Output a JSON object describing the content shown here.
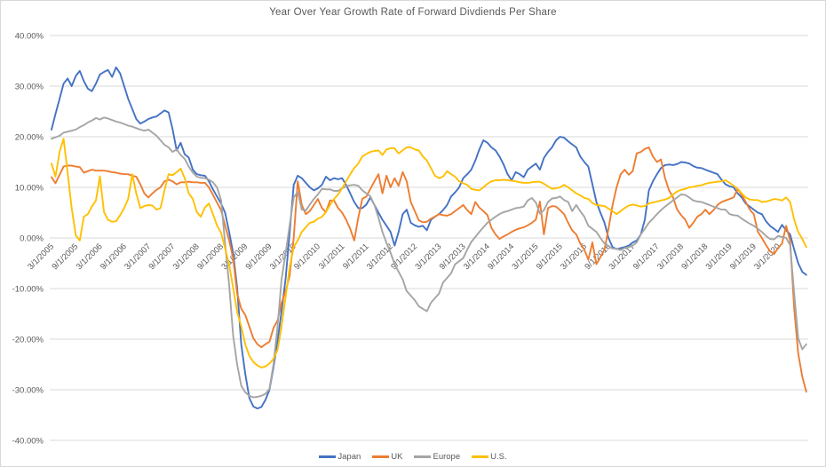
{
  "chart_data": {
    "type": "line",
    "title": "Year Over Year Growth Rate of Forward Divdiends Per Share",
    "grid": true,
    "legend_position": "bottom",
    "ylim": [
      -40,
      40
    ],
    "y_tick_step": 10,
    "y_tick_labels": [
      "40.00%",
      "30.00%",
      "20.00%",
      "10.00%",
      "0.00%",
      "-10.00%",
      "-20.00%",
      "-30.00%",
      "-40.00%"
    ],
    "x_tick_labels": [
      "3/1/2005",
      "9/1/2005",
      "3/1/2006",
      "9/1/2006",
      "3/1/2007",
      "9/1/2007",
      "3/1/2008",
      "9/1/2008",
      "3/1/2009",
      "9/1/2009",
      "3/1/2010",
      "9/1/2010",
      "3/1/2011",
      "9/1/2011",
      "3/1/2012",
      "9/1/2012",
      "3/1/2013",
      "9/1/2013",
      "3/1/2014",
      "9/1/2014",
      "3/1/2015",
      "9/1/2015",
      "3/1/2016",
      "9/1/2016",
      "3/1/2017",
      "9/1/2017",
      "3/1/2018",
      "9/1/2018",
      "3/1/2019",
      "9/1/2019",
      "3/1/2020"
    ],
    "x_label_every_n_months": 6,
    "x_start_month": "2005-03",
    "x_end_month": "2020-10",
    "series": [
      {
        "name": "Japan",
        "color": "#4472C4",
        "values": [
          21.4,
          24.5,
          27.5,
          30.5,
          31.5,
          30.0,
          32.0,
          33.0,
          31.0,
          29.5,
          29.0,
          30.5,
          32.3,
          32.8,
          33.2,
          31.8,
          33.7,
          32.5,
          30.0,
          27.5,
          25.5,
          23.5,
          22.6,
          23.0,
          23.5,
          23.8,
          24.0,
          24.6,
          25.2,
          24.8,
          21.5,
          17.3,
          18.8,
          16.5,
          15.9,
          13.5,
          12.6,
          12.4,
          12.3,
          11.2,
          9.6,
          8.2,
          6.8,
          5.0,
          1.2,
          -3.0,
          -9.8,
          -21.0,
          -26.8,
          -31.6,
          -33.3,
          -33.7,
          -33.4,
          -32.0,
          -30.0,
          -25.6,
          -20.4,
          -14.5,
          -8.0,
          1.0,
          10.5,
          12.3,
          11.8,
          10.9,
          10.0,
          9.4,
          9.8,
          10.5,
          12.1,
          11.4,
          11.8,
          11.6,
          11.8,
          10.5,
          8.8,
          7.1,
          5.9,
          5.9,
          6.6,
          8.0,
          6.5,
          5.0,
          3.6,
          2.4,
          1.2,
          -1.5,
          1.2,
          4.7,
          5.6,
          3.0,
          2.5,
          2.2,
          2.4,
          1.5,
          3.6,
          4.2,
          4.7,
          5.5,
          6.5,
          8.2,
          9.0,
          10.0,
          11.8,
          12.6,
          13.5,
          15.3,
          17.5,
          19.3,
          18.8,
          17.9,
          17.3,
          16.1,
          14.5,
          12.6,
          11.4,
          13.0,
          12.6,
          12.0,
          13.5,
          14.1,
          14.7,
          13.5,
          15.8,
          17.0,
          17.9,
          19.3,
          20.0,
          19.8,
          19.1,
          18.5,
          17.9,
          16.1,
          15.0,
          14.1,
          10.6,
          7.1,
          5.0,
          3.0,
          0.0,
          -1.8,
          -2.2,
          -2.0,
          -1.8,
          -1.5,
          -0.9,
          -0.5,
          0.7,
          3.6,
          9.4,
          11.2,
          12.6,
          13.8,
          14.4,
          14.5,
          14.4,
          14.6,
          15.0,
          14.9,
          14.7,
          14.2,
          13.9,
          13.8,
          13.5,
          13.2,
          12.9,
          12.6,
          11.5,
          10.6,
          10.2,
          10.0,
          8.8,
          8.0,
          6.8,
          6.2,
          5.6,
          5.0,
          4.7,
          3.3,
          2.4,
          1.8,
          1.2,
          2.6,
          1.5,
          0.7,
          -2.3,
          -5.0,
          -6.7,
          -7.3
        ]
      },
      {
        "name": "UK",
        "color": "#ED7D31",
        "values": [
          12.0,
          10.8,
          12.5,
          14.1,
          14.3,
          14.3,
          14.1,
          14.0,
          12.9,
          13.2,
          13.5,
          13.3,
          13.3,
          13.3,
          13.2,
          13.0,
          12.9,
          12.7,
          12.6,
          12.6,
          12.3,
          12.1,
          10.6,
          8.8,
          8.0,
          8.8,
          9.5,
          10.0,
          11.2,
          11.5,
          11.2,
          10.6,
          11.0,
          11.0,
          11.1,
          11.0,
          11.0,
          10.9,
          10.9,
          10.0,
          8.5,
          7.0,
          5.5,
          2.5,
          -0.5,
          -4.0,
          -11.0,
          -14.0,
          -15.2,
          -17.5,
          -19.8,
          -21.0,
          -21.6,
          -21.0,
          -20.5,
          -17.8,
          -16.3,
          -12.8,
          -10.5,
          -7.5,
          0.0,
          11.2,
          6.5,
          4.7,
          5.3,
          6.5,
          7.7,
          5.9,
          5.1,
          7.4,
          7.4,
          5.9,
          5.0,
          3.6,
          1.8,
          -0.5,
          4.0,
          7.7,
          8.2,
          9.7,
          11.2,
          12.6,
          8.8,
          12.3,
          10.0,
          11.8,
          10.3,
          13.0,
          11.2,
          7.1,
          5.3,
          3.5,
          3.1,
          3.2,
          3.8,
          4.2,
          4.7,
          4.5,
          4.4,
          4.7,
          5.3,
          5.9,
          6.5,
          5.5,
          4.7,
          7.1,
          6.0,
          5.3,
          4.5,
          2.0,
          0.7,
          -0.2,
          0.3,
          0.7,
          1.2,
          1.6,
          1.9,
          2.1,
          2.5,
          3.0,
          3.6,
          7.2,
          0.7,
          5.9,
          6.3,
          6.2,
          5.5,
          4.7,
          3.0,
          1.5,
          0.7,
          -1.1,
          -2.3,
          -4.3,
          -0.9,
          -5.2,
          -3.8,
          -2.3,
          1.8,
          6.5,
          10.0,
          12.6,
          13.5,
          12.5,
          13.2,
          16.7,
          17.0,
          17.6,
          17.9,
          16.1,
          15.0,
          15.5,
          11.8,
          9.4,
          8.0,
          5.6,
          4.5,
          3.6,
          2.0,
          3.0,
          4.2,
          4.7,
          5.6,
          4.7,
          5.5,
          6.5,
          7.1,
          7.4,
          7.7,
          8.0,
          9.7,
          8.5,
          7.1,
          5.6,
          4.7,
          1.2,
          0.0,
          -1.4,
          -2.6,
          -3.2,
          -2.0,
          -1.1,
          2.4,
          -0.5,
          -14.0,
          -22.8,
          -27.4,
          -30.4
        ]
      },
      {
        "name": "Europe",
        "color": "#A5A5A5",
        "values": [
          19.6,
          19.9,
          20.2,
          20.8,
          21.0,
          21.2,
          21.4,
          21.9,
          22.3,
          22.8,
          23.2,
          23.7,
          23.4,
          23.8,
          23.6,
          23.3,
          23.0,
          22.8,
          22.5,
          22.2,
          22.0,
          21.7,
          21.4,
          21.2,
          21.4,
          20.8,
          20.2,
          19.3,
          18.4,
          17.9,
          17.0,
          17.5,
          16.4,
          15.6,
          14.1,
          12.9,
          12.1,
          11.9,
          11.8,
          11.5,
          11.0,
          10.0,
          7.5,
          -1.0,
          -9.3,
          -19.3,
          -25.0,
          -29.2,
          -30.5,
          -31.2,
          -31.5,
          -31.4,
          -31.2,
          -30.8,
          -29.8,
          -25.0,
          -17.5,
          -8.2,
          -3.0,
          2.5,
          8.0,
          9.1,
          5.6,
          5.4,
          6.6,
          7.7,
          8.6,
          9.7,
          9.6,
          9.6,
          9.3,
          9.3,
          9.8,
          10.2,
          10.4,
          10.5,
          10.3,
          9.4,
          8.8,
          8.2,
          6.5,
          4.0,
          1.2,
          -1.0,
          -2.9,
          -5.2,
          -6.7,
          -8.2,
          -10.5,
          -11.4,
          -12.3,
          -13.5,
          -14.0,
          -14.5,
          -12.8,
          -11.9,
          -11.0,
          -8.8,
          -7.9,
          -7.0,
          -5.2,
          -4.6,
          -4.0,
          -2.3,
          -0.8,
          0.2,
          1.2,
          2.1,
          3.0,
          3.6,
          4.2,
          4.7,
          5.1,
          5.3,
          5.6,
          5.9,
          6.0,
          6.2,
          7.4,
          7.9,
          7.0,
          4.8,
          5.5,
          7.1,
          7.8,
          7.9,
          8.2,
          7.5,
          7.1,
          5.3,
          6.5,
          5.3,
          4.2,
          2.4,
          1.8,
          1.2,
          0.0,
          -1.1,
          -1.6,
          -2.1,
          -2.1,
          -2.4,
          -2.0,
          -1.8,
          -1.5,
          -0.9,
          0.7,
          1.8,
          3.0,
          3.8,
          4.7,
          5.5,
          6.2,
          6.8,
          7.4,
          8.0,
          8.6,
          8.5,
          8.0,
          7.4,
          7.2,
          7.1,
          6.8,
          6.5,
          6.2,
          5.9,
          5.6,
          5.6,
          4.7,
          4.5,
          4.4,
          3.8,
          3.3,
          2.8,
          2.4,
          1.8,
          1.2,
          0.4,
          -0.2,
          -0.3,
          0.4,
          0.2,
          0.0,
          -1.4,
          -11.0,
          -19.8,
          -22.0,
          -21.0
        ]
      },
      {
        "name": "U.S.",
        "color": "#FFC000",
        "values": [
          14.7,
          12.1,
          17.0,
          19.6,
          12.8,
          5.9,
          0.5,
          -0.5,
          4.2,
          4.7,
          6.2,
          7.4,
          12.2,
          5.1,
          3.6,
          3.2,
          3.3,
          4.5,
          5.9,
          7.7,
          12.6,
          8.8,
          5.9,
          6.3,
          6.5,
          6.4,
          5.6,
          5.9,
          9.4,
          12.6,
          12.4,
          13.0,
          13.7,
          11.8,
          8.8,
          7.7,
          5.1,
          4.2,
          6.0,
          6.8,
          4.7,
          2.5,
          1.0,
          -2.0,
          -5.3,
          -9.9,
          -14.6,
          -17.5,
          -21.0,
          -23.3,
          -24.5,
          -25.2,
          -25.6,
          -25.4,
          -24.8,
          -23.9,
          -22.1,
          -17.5,
          -11.6,
          -5.8,
          -1.8,
          -0.5,
          1.2,
          2.1,
          3.0,
          3.2,
          3.8,
          4.2,
          5.1,
          6.5,
          7.7,
          8.6,
          9.8,
          11.2,
          12.6,
          13.8,
          14.7,
          16.1,
          16.6,
          17.0,
          17.2,
          17.3,
          16.4,
          17.5,
          17.7,
          17.7,
          16.7,
          17.3,
          17.9,
          17.9,
          17.5,
          17.3,
          16.1,
          15.3,
          13.8,
          12.3,
          11.8,
          12.1,
          13.2,
          12.6,
          12.1,
          11.2,
          10.8,
          10.5,
          9.7,
          9.5,
          9.4,
          10.0,
          10.7,
          11.2,
          11.4,
          11.4,
          11.5,
          11.4,
          11.3,
          11.2,
          11.0,
          10.9,
          10.9,
          11.0,
          11.1,
          11.1,
          10.7,
          10.2,
          9.7,
          9.8,
          10.0,
          10.5,
          10.0,
          9.4,
          8.8,
          8.4,
          7.9,
          7.7,
          6.9,
          6.5,
          6.4,
          6.3,
          5.8,
          5.3,
          4.7,
          5.3,
          5.9,
          6.4,
          6.6,
          6.4,
          6.2,
          6.3,
          6.8,
          7.0,
          7.2,
          7.4,
          7.6,
          7.9,
          8.6,
          9.2,
          9.5,
          9.7,
          10.0,
          10.1,
          10.3,
          10.4,
          10.7,
          10.9,
          11.0,
          11.1,
          11.2,
          11.4,
          10.9,
          10.3,
          9.7,
          8.8,
          8.0,
          7.6,
          7.5,
          7.5,
          7.1,
          7.2,
          7.4,
          7.7,
          7.6,
          7.4,
          8.0,
          7.1,
          3.6,
          1.2,
          -0.2,
          -1.8
        ]
      }
    ]
  },
  "legend": {
    "items": [
      {
        "label": "Japan",
        "color": "#4472C4"
      },
      {
        "label": "UK",
        "color": "#ED7D31"
      },
      {
        "label": "Europe",
        "color": "#A5A5A5"
      },
      {
        "label": "U.S.",
        "color": "#FFC000"
      }
    ]
  },
  "style": {
    "gridline_color": "#d9d9d9",
    "label_color": "#595959",
    "background": "#ffffff"
  }
}
